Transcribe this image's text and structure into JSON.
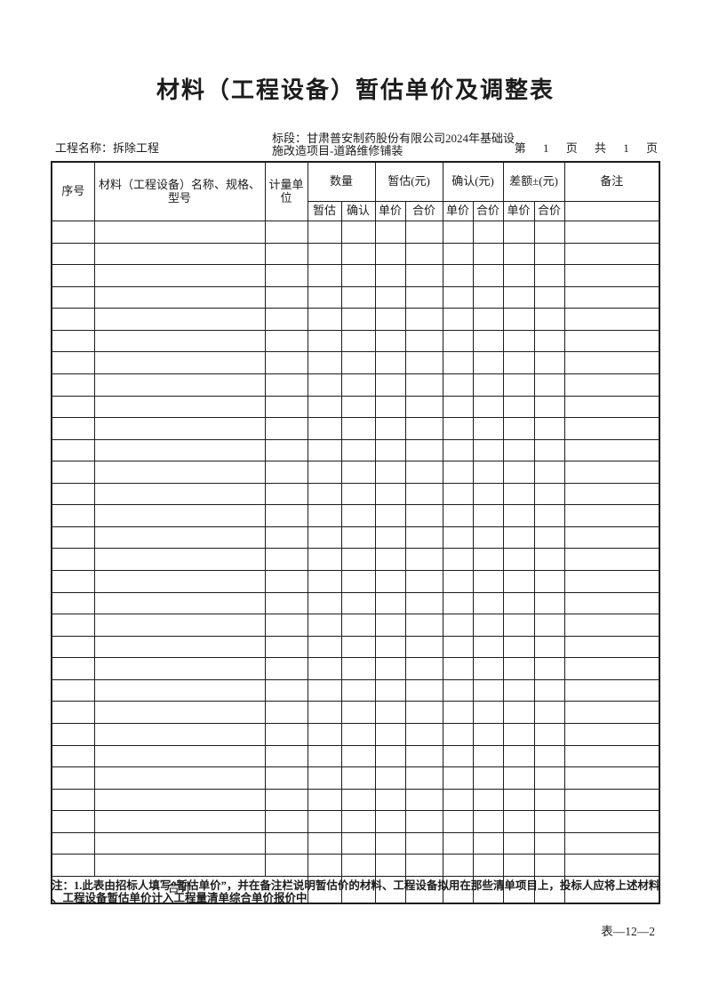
{
  "page": {
    "title": "材料（工程设备）暂估单价及调整表",
    "project_name": "工程名称：拆除工程",
    "section_line1": "标段：甘肃普安制药股份有限公司2024年基础设",
    "section_line2": "施改造项目-道路维修铺装",
    "pagination": [
      "第",
      "1",
      "页",
      "共",
      "1",
      "页"
    ],
    "note_line1": "注：1.此表由招标人填写“暂估单价”，并在备注栏说明暂估价的材料、工程设备拟用在那些清单项目上，投标人应将上述材料",
    "note_line2": "、工程设备暂估单价计入工程量清单综合单价报价中",
    "form_number": "表—12—2"
  },
  "table": {
    "header": {
      "seq": "序号",
      "name": "材料（工程设备）名称、规格、型号",
      "unit": "计量单位",
      "quantity_group": "数量",
      "estimate_group": "暂估(元)",
      "confirm_group": "确认(元)",
      "diff_group": "差额±(元)",
      "remark": "备注",
      "sub": [
        "暂估",
        "确认",
        "单价",
        "合价",
        "单价",
        "合价",
        "单价",
        "合价"
      ]
    },
    "body_row_count": 30,
    "column_count": 12,
    "total_label": "合计",
    "border_color": "#1c1c1c"
  }
}
